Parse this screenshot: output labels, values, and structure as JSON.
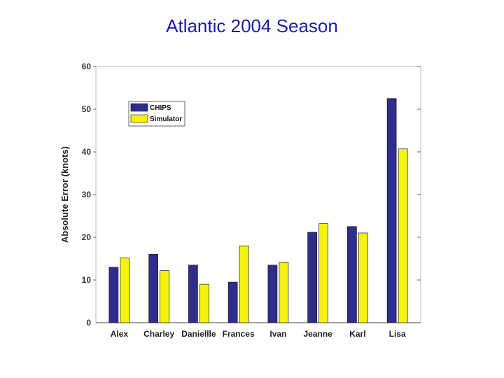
{
  "slide": {
    "title": "Atlantic 2004 Season"
  },
  "chart_data": {
    "type": "bar",
    "title": "",
    "xlabel": "",
    "ylabel": "Absolute Error (knots)",
    "ylim": [
      0,
      60
    ],
    "yticks": [
      0,
      10,
      20,
      30,
      40,
      50,
      60
    ],
    "grid": false,
    "legend_position": "top-left",
    "categories": [
      "Alex",
      "Charley",
      "Daniellle",
      "Frances",
      "Ivan",
      "Jeanne",
      "Karl",
      "Lisa"
    ],
    "series": [
      {
        "name": "CHIPS",
        "color": "#2e2c8c",
        "values": [
          13.0,
          16.0,
          13.5,
          9.5,
          13.5,
          21.2,
          22.5,
          52.5
        ]
      },
      {
        "name": "Simulator",
        "color": "#f4f20e",
        "values": [
          15.2,
          12.2,
          9.0,
          18.0,
          14.2,
          23.2,
          21.0,
          40.7
        ]
      }
    ]
  }
}
